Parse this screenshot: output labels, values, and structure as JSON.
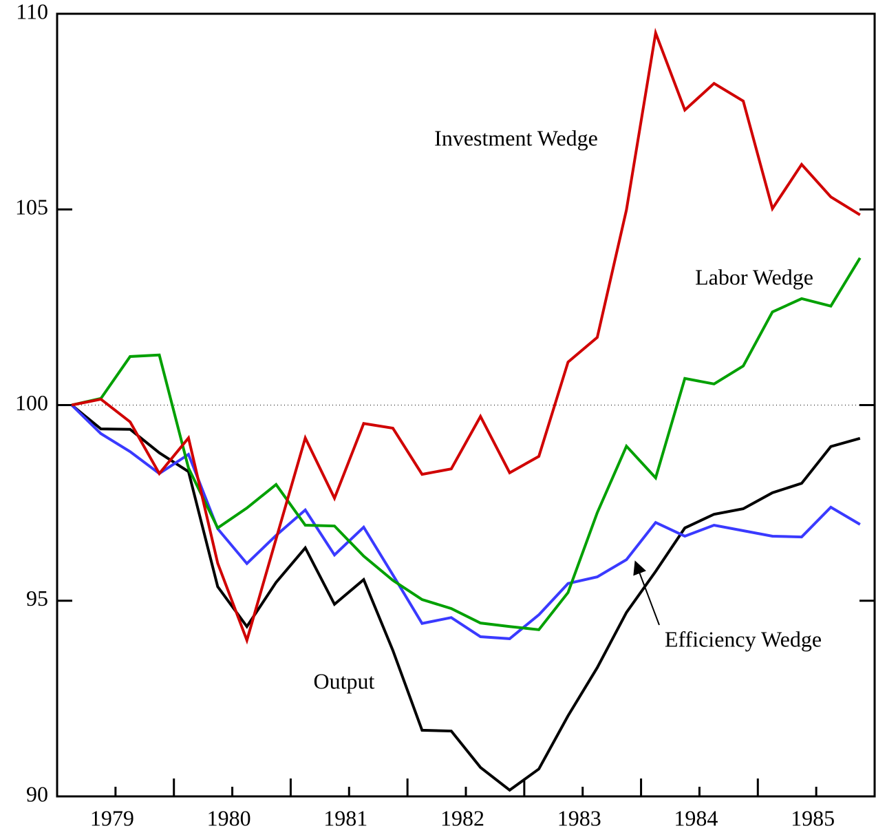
{
  "chart_data": {
    "type": "line",
    "x": [
      1979.125,
      1979.375,
      1979.625,
      1979.875,
      1980.125,
      1980.375,
      1980.625,
      1980.875,
      1981.125,
      1981.375,
      1981.625,
      1981.875,
      1982.125,
      1982.375,
      1982.625,
      1982.875,
      1983.125,
      1983.375,
      1983.625,
      1983.875,
      1984.125,
      1984.375,
      1984.625,
      1984.875,
      1985.125,
      1985.375,
      1985.625,
      1985.875
    ],
    "series": [
      {
        "name": "Output",
        "color": "#000000",
        "values": [
          100,
          99.39,
          99.38,
          98.78,
          98.3,
          95.36,
          94.34,
          95.47,
          96.35,
          94.91,
          95.54,
          93.73,
          91.69,
          91.67,
          90.74,
          90.16,
          90.7,
          92.06,
          93.29,
          94.7,
          95.75,
          96.86,
          97.21,
          97.35,
          97.76,
          98.0,
          98.94,
          99.15
        ]
      },
      {
        "name": "Efficiency Wedge",
        "color": "#3a3aff",
        "values": [
          100,
          99.27,
          98.81,
          98.25,
          98.74,
          96.84,
          95.95,
          96.67,
          97.32,
          96.17,
          96.88,
          95.66,
          94.42,
          94.57,
          94.08,
          94.03,
          94.64,
          95.44,
          95.61,
          96.05,
          97.0,
          96.65,
          96.93,
          96.79,
          96.65,
          96.63,
          97.39,
          96.95
        ]
      },
      {
        "name": "Labor Wedge",
        "color": "#00a000",
        "values": [
          100,
          100.17,
          101.24,
          101.28,
          98.39,
          96.86,
          97.37,
          97.97,
          96.93,
          96.91,
          96.14,
          95.52,
          95.03,
          94.8,
          94.43,
          94.34,
          94.26,
          95.21,
          97.25,
          98.95,
          98.14,
          100.68,
          100.54,
          101.0,
          102.38,
          102.72,
          102.53,
          103.76
        ]
      },
      {
        "name": "Investment Wedge",
        "color": "#d00000",
        "values": [
          100,
          100.15,
          99.57,
          98.25,
          99.16,
          95.96,
          93.99,
          96.58,
          99.16,
          97.62,
          99.53,
          99.41,
          98.23,
          98.37,
          99.71,
          98.27,
          98.69,
          101.1,
          101.73,
          104.99,
          109.51,
          107.54,
          108.22,
          107.77,
          105.02,
          106.15,
          105.32,
          104.86
        ]
      }
    ],
    "xlim": [
      1979,
      1986
    ],
    "xticks": [
      {
        "value": 1979.5,
        "label": "1979"
      },
      {
        "value": 1980.5,
        "label": "1980"
      },
      {
        "value": 1981.5,
        "label": "1981"
      },
      {
        "value": 1982.5,
        "label": "1982"
      },
      {
        "value": 1983.5,
        "label": "1983"
      },
      {
        "value": 1984.5,
        "label": "1984"
      },
      {
        "value": 1985.5,
        "label": "1985"
      }
    ],
    "x_major_ticks": [
      1980,
      1981,
      1982,
      1983,
      1984,
      1985
    ],
    "ylim": [
      90,
      110
    ],
    "yticks": [
      90,
      95,
      100,
      105,
      110
    ],
    "reference_line": 100
  }
}
